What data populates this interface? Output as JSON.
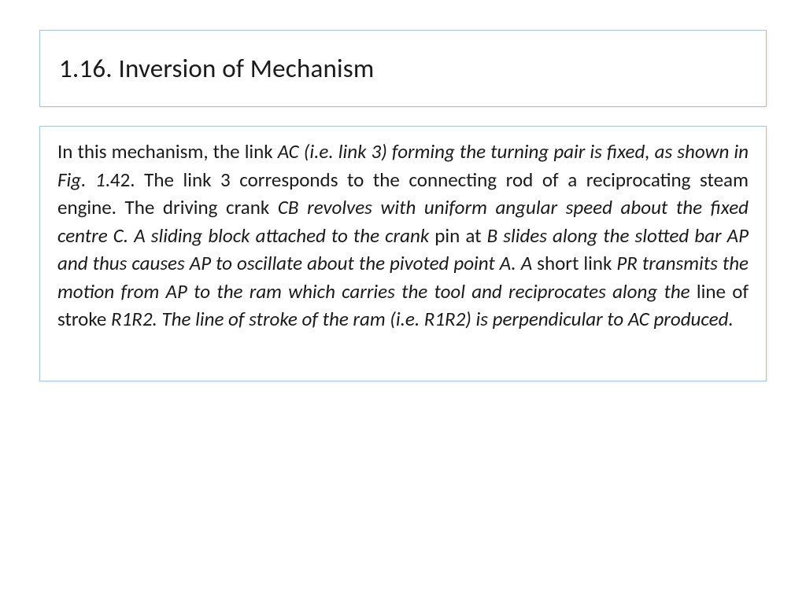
{
  "slide": {
    "title": "1.16. Inversion of Mechanism",
    "body": {
      "s1": "In this mechanism, the link ",
      "s2": "AC (i.e. link 3) forming the turning pair is fixed, as shown in Fig. 1",
      "s3": ".42. The link 3 corresponds to the connecting rod of a reciprocating steam engine. The driving crank ",
      "s4": "CB revolves with uniform angular speed about the fixed centre C. A sliding block attached to the crank ",
      "s5": "pin at ",
      "s6": "B slides along the slotted bar AP and thus causes AP to oscillate about the pivoted point A. A ",
      "s7": "short link ",
      "s8": "PR transmits the motion from AP to the ram which carries the tool and reciprocates along the ",
      "s9": "line of stroke ",
      "s10": "R1R2. The line of stroke of the ram (i.e. R1R2) is perpendicular to AC produced."
    }
  },
  "style": {
    "border_color": "#a8c4d8",
    "background_color": "#ffffff",
    "text_color": "#1a1a1a",
    "title_fontsize": 33,
    "body_fontsize": 25,
    "body_line_height": 1.42,
    "font_family": "Calibri"
  }
}
